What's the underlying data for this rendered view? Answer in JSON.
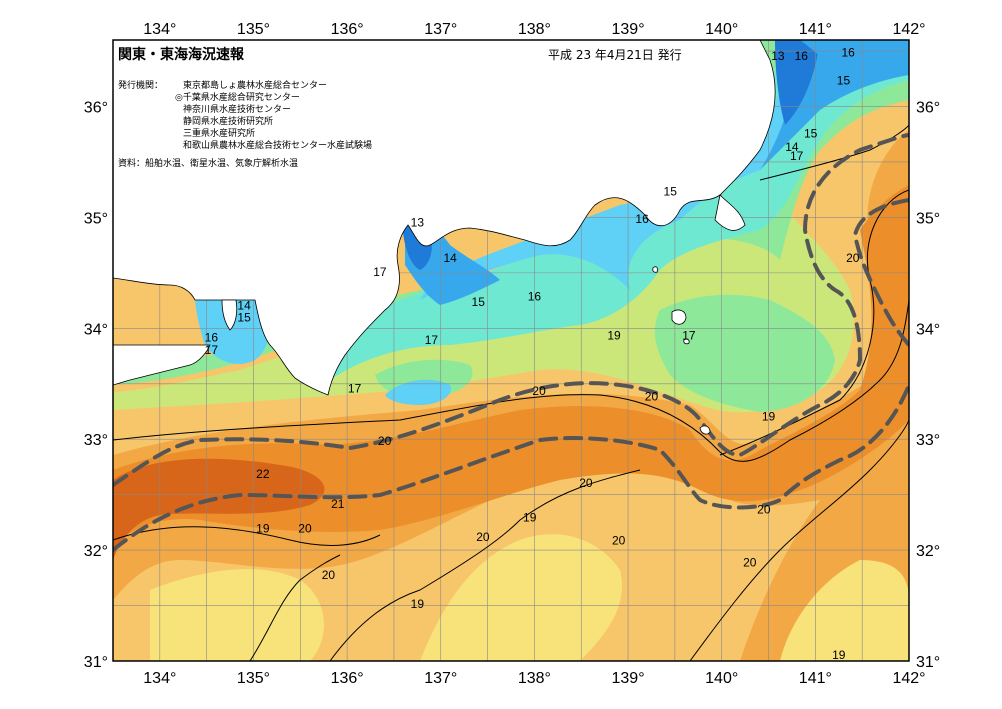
{
  "header": {
    "title": "関東・東海海況速報",
    "date": "平成 23 年4月21日 発行"
  },
  "info": {
    "publisher_label": "発行機関：",
    "publishers": [
      "東京都島しょ農林水産総合センター",
      "◎千葉県水産総合研究センター",
      "神奈川県水産技術センター",
      "静岡県水産技術研究所",
      "三重県水産研究所",
      "和歌山県農林水産総合技術センター水産試験場"
    ],
    "source": "資料：船舶水温、衛星水温、気象庁解析水温"
  },
  "axes": {
    "lon_labels": [
      "134°",
      "135°",
      "136°",
      "137°",
      "138°",
      "139°",
      "140°",
      "141°",
      "142°"
    ],
    "lat_labels": [
      "36°",
      "35°",
      "34°",
      "33°",
      "32°",
      "31°"
    ]
  },
  "contour_labels": [
    {
      "text": "16",
      "lon": 141.35,
      "lat": 36.45
    },
    {
      "text": "13",
      "lon": 140.6,
      "lat": 36.42
    },
    {
      "text": "16",
      "lon": 140.85,
      "lat": 36.42
    },
    {
      "text": "15",
      "lon": 141.3,
      "lat": 36.2
    },
    {
      "text": "15",
      "lon": 140.95,
      "lat": 35.72
    },
    {
      "text": "14",
      "lon": 140.75,
      "lat": 35.6
    },
    {
      "text": "17",
      "lon": 140.8,
      "lat": 35.52
    },
    {
      "text": "15",
      "lon": 139.45,
      "lat": 35.2
    },
    {
      "text": "16",
      "lon": 139.15,
      "lat": 34.95
    },
    {
      "text": "13",
      "lon": 136.75,
      "lat": 34.92
    },
    {
      "text": "14",
      "lon": 137.1,
      "lat": 34.6
    },
    {
      "text": "17",
      "lon": 136.35,
      "lat": 34.47
    },
    {
      "text": "20",
      "lon": 141.4,
      "lat": 34.6
    },
    {
      "text": "15",
      "lon": 137.4,
      "lat": 34.2
    },
    {
      "text": "16",
      "lon": 138.0,
      "lat": 34.25
    },
    {
      "text": "14",
      "lon": 134.9,
      "lat": 34.17
    },
    {
      "text": "15",
      "lon": 134.9,
      "lat": 34.06
    },
    {
      "text": "19",
      "lon": 138.85,
      "lat": 33.9
    },
    {
      "text": "17",
      "lon": 139.65,
      "lat": 33.9
    },
    {
      "text": "16",
      "lon": 134.55,
      "lat": 33.88
    },
    {
      "text": "17",
      "lon": 134.55,
      "lat": 33.77
    },
    {
      "text": "17",
      "lon": 136.9,
      "lat": 33.86
    },
    {
      "text": "17",
      "lon": 136.08,
      "lat": 33.42
    },
    {
      "text": "20",
      "lon": 138.05,
      "lat": 33.4
    },
    {
      "text": "20",
      "lon": 139.25,
      "lat": 33.35
    },
    {
      "text": "19",
      "lon": 140.5,
      "lat": 33.17
    },
    {
      "text": "20",
      "lon": 136.4,
      "lat": 32.95
    },
    {
      "text": "22",
      "lon": 135.1,
      "lat": 32.65
    },
    {
      "text": "20",
      "lon": 138.55,
      "lat": 32.57
    },
    {
      "text": "21",
      "lon": 135.9,
      "lat": 32.38
    },
    {
      "text": "20",
      "lon": 140.45,
      "lat": 32.33
    },
    {
      "text": "19",
      "lon": 137.95,
      "lat": 32.26
    },
    {
      "text": "19",
      "lon": 135.1,
      "lat": 32.16
    },
    {
      "text": "20",
      "lon": 135.55,
      "lat": 32.16
    },
    {
      "text": "20",
      "lon": 137.45,
      "lat": 32.08
    },
    {
      "text": "20",
      "lon": 138.9,
      "lat": 32.05
    },
    {
      "text": "20",
      "lon": 140.3,
      "lat": 31.85
    },
    {
      "text": "20",
      "lon": 135.8,
      "lat": 31.74
    },
    {
      "text": "19",
      "lon": 136.75,
      "lat": 31.48
    },
    {
      "text": "19",
      "lon": 141.25,
      "lat": 31.02
    }
  ],
  "colors": {
    "sea_13": "#1f7ad8",
    "sea_14": "#38a8ec",
    "sea_15": "#5fd0f6",
    "sea_16": "#6fe8d2",
    "sea_17": "#8ee89a",
    "sea_18": "#cbe77a",
    "sea_19": "#f7e37a",
    "sea_19b": "#f7c66a",
    "sea_20": "#f3a846",
    "sea_21": "#ec8e2a",
    "sea_22": "#d8661a",
    "land": "#ffffff",
    "kuroshio_axis": "#555555"
  }
}
